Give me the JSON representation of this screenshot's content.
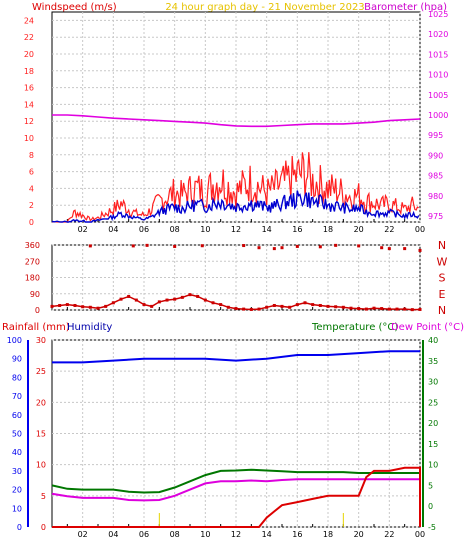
{
  "header": {
    "left_title": "Windspeed (m/s)",
    "center_title": "24 hour graph day - 21 November 2023",
    "right_title": "Barometer (hpa)"
  },
  "bottom_header": {
    "rainfall_label": "Rainfall (mm)",
    "humidity_label": "Humidity",
    "temperature_label": "Temperature (°C)",
    "dewpoint_label": "Dew Point (°C)"
  },
  "colors": {
    "wind_gust": "#ff2020",
    "wind_avg": "#0000d0",
    "barometer": "#e000e0",
    "direction": "#cc0000",
    "humidity": "#0000ee",
    "temperature": "#007700",
    "dewpoint": "#dd00dd",
    "rainfall": "#dd0000",
    "grid": "#c8c8c8"
  },
  "chart_data": [
    {
      "type": "line",
      "name": "wind-and-pressure",
      "x_ticks": [
        "02",
        "04",
        "06",
        "08",
        "10",
        "12",
        "14",
        "16",
        "18",
        "20",
        "22",
        "00"
      ],
      "xlim": [
        0,
        24
      ],
      "y_left_ticks": [
        0,
        2,
        4,
        6,
        8,
        10,
        12,
        14,
        16,
        18,
        20,
        22,
        24
      ],
      "ylim_left": [
        0,
        25
      ],
      "y_right_ticks": [
        975,
        980,
        985,
        990,
        995,
        1000,
        1005,
        1010,
        1015,
        1020,
        1025
      ],
      "ylim_right": [
        973.5,
        1025.5
      ],
      "grid": true,
      "series": [
        {
          "key": "gust",
          "axis": "left",
          "x": [
            0,
            1,
            1.5,
            2,
            2.5,
            3,
            3.5,
            4,
            4.5,
            5,
            5.5,
            6,
            6.5,
            7,
            7.5,
            8,
            8.5,
            9,
            9.5,
            10,
            10.5,
            11,
            11.5,
            12,
            12.5,
            13,
            13.5,
            14,
            14.5,
            15,
            15.5,
            16,
            16.5,
            17,
            17.5,
            18,
            18.5,
            19,
            19.5,
            20,
            20.5,
            21,
            21.5,
            22,
            22.5,
            23,
            23.5,
            24
          ],
          "values": [
            0,
            0,
            1.2,
            0.8,
            0.3,
            0.5,
            1,
            1.5,
            2.2,
            1.5,
            1,
            0.8,
            1.5,
            2.5,
            3,
            3.5,
            3.2,
            3.8,
            4,
            3.5,
            4.5,
            5,
            4.2,
            3.5,
            4.3,
            4.8,
            4.2,
            3.5,
            4,
            4.5,
            5,
            5.5,
            6,
            4.8,
            4.5,
            4,
            3.8,
            3.5,
            3,
            3.2,
            2.5,
            2.3,
            2,
            2.2,
            1.8,
            1.5,
            2,
            1.5
          ]
        },
        {
          "key": "average",
          "axis": "left",
          "x": [
            0,
            1,
            1.5,
            2,
            2.5,
            3,
            3.5,
            4,
            4.5,
            5,
            5.5,
            6,
            6.5,
            7,
            7.5,
            8,
            8.5,
            9,
            9.5,
            10,
            10.5,
            11,
            11.5,
            12,
            12.5,
            13,
            13.5,
            14,
            14.5,
            15,
            15.5,
            16,
            16.5,
            17,
            17.5,
            18,
            18.5,
            19,
            19.5,
            20,
            20.5,
            21,
            21.5,
            22,
            22.5,
            23,
            23.5,
            24
          ],
          "values": [
            0,
            0,
            0.2,
            0.1,
            0,
            0.2,
            0.4,
            0.6,
            1,
            0.7,
            0.5,
            0.3,
            0.6,
            1.2,
            1.5,
            1.8,
            1.6,
            1.9,
            2.1,
            1.8,
            2.2,
            2.4,
            2.1,
            1.8,
            2,
            2.2,
            2,
            1.7,
            1.9,
            2.2,
            2.5,
            2.7,
            3,
            2.4,
            2.3,
            2,
            1.9,
            1.7,
            1.5,
            1.6,
            1.2,
            1.1,
            1,
            1.1,
            0.9,
            0.7,
            0.9,
            0.6
          ]
        },
        {
          "key": "barometer",
          "axis": "right",
          "x": [
            0,
            1,
            2,
            3,
            4,
            5,
            6,
            7,
            8,
            9,
            10,
            11,
            12,
            13,
            14,
            15,
            16,
            17,
            18,
            19,
            20,
            21,
            22,
            23,
            24
          ],
          "values": [
            1000,
            1000,
            999.8,
            999.5,
            999.2,
            999,
            998.8,
            998.6,
            998.4,
            998.2,
            998,
            997.6,
            997.3,
            997.2,
            997.2,
            997.4,
            997.6,
            997.8,
            997.8,
            997.8,
            998,
            998.2,
            998.6,
            998.8,
            999
          ]
        }
      ]
    },
    {
      "type": "scatter",
      "name": "wind-direction",
      "x_ticks": [
        "02",
        "04",
        "06",
        "08",
        "10",
        "12",
        "14",
        "16",
        "18",
        "20",
        "22",
        "00"
      ],
      "xlim": [
        0,
        24
      ],
      "y_left_ticks": [
        0,
        90,
        180,
        270,
        360
      ],
      "ylim": [
        0,
        360
      ],
      "y_right_labels": [
        "N",
        "W",
        "S",
        "E",
        "N"
      ],
      "points": [
        [
          0,
          20
        ],
        [
          0.5,
          25
        ],
        [
          1,
          30
        ],
        [
          1.5,
          25
        ],
        [
          2,
          18
        ],
        [
          2.5,
          15
        ],
        [
          3,
          10
        ],
        [
          3.5,
          20
        ],
        [
          4,
          40
        ],
        [
          4.5,
          60
        ],
        [
          5,
          75
        ],
        [
          5.5,
          55
        ],
        [
          6,
          30
        ],
        [
          6.5,
          20
        ],
        [
          7,
          45
        ],
        [
          7.5,
          55
        ],
        [
          8,
          60
        ],
        [
          8.5,
          70
        ],
        [
          9,
          85
        ],
        [
          9.5,
          75
        ],
        [
          10,
          55
        ],
        [
          10.5,
          40
        ],
        [
          11,
          30
        ],
        [
          11.5,
          15
        ],
        [
          12,
          8
        ],
        [
          12.5,
          5
        ],
        [
          13,
          3
        ],
        [
          13.5,
          5
        ],
        [
          14,
          15
        ],
        [
          14.5,
          25
        ],
        [
          15,
          20
        ],
        [
          15.5,
          15
        ],
        [
          16,
          30
        ],
        [
          16.5,
          40
        ],
        [
          17,
          30
        ],
        [
          17.5,
          25
        ],
        [
          18,
          20
        ],
        [
          18.5,
          18
        ],
        [
          19,
          15
        ],
        [
          19.5,
          10
        ],
        [
          20,
          8
        ],
        [
          20.5,
          5
        ],
        [
          21,
          10
        ],
        [
          21.5,
          8
        ],
        [
          22,
          5
        ],
        [
          22.5,
          5
        ],
        [
          23,
          5
        ],
        [
          23.5,
          2
        ],
        [
          24,
          3
        ],
        [
          2.5,
          355
        ],
        [
          5.3,
          355
        ],
        [
          6.2,
          358
        ],
        [
          8,
          352
        ],
        [
          9.8,
          356
        ],
        [
          12.5,
          357
        ],
        [
          13.5,
          345
        ],
        [
          14.5,
          340
        ],
        [
          15,
          345
        ],
        [
          16,
          352
        ],
        [
          17.5,
          350
        ],
        [
          18.5,
          358
        ],
        [
          20,
          355
        ],
        [
          21.5,
          345
        ],
        [
          22,
          340
        ],
        [
          23,
          340
        ],
        [
          24,
          330
        ]
      ]
    },
    {
      "type": "line",
      "name": "rain-humidity-temperature",
      "x_ticks": [
        "02",
        "04",
        "06",
        "08",
        "10",
        "12",
        "14",
        "16",
        "18",
        "20",
        "22",
        "00"
      ],
      "xlim": [
        0,
        24
      ],
      "y_far_left_ticks": [
        0,
        10,
        20,
        30,
        40,
        50,
        60,
        70,
        80,
        90,
        100
      ],
      "y_left_ticks": [
        0,
        5,
        10,
        15,
        20,
        25,
        30
      ],
      "y_right_ticks": [
        -5,
        0,
        5,
        10,
        15,
        20,
        25,
        30,
        35,
        40
      ],
      "ylim_humidity": [
        0,
        100
      ],
      "ylim_rain": [
        0,
        30
      ],
      "ylim_temp": [
        -5,
        40
      ],
      "grid": true,
      "series": [
        {
          "key": "humidity",
          "axis": "humidity",
          "x": [
            0,
            2,
            4,
            6,
            8,
            10,
            12,
            14,
            16,
            18,
            20,
            22,
            24
          ],
          "values": [
            88,
            88,
            89,
            90,
            90,
            90,
            89,
            90,
            92,
            92,
            93,
            94,
            94
          ]
        },
        {
          "key": "temperature",
          "axis": "temp",
          "x": [
            0,
            1,
            2,
            3,
            4,
            5,
            6,
            7,
            8,
            9,
            10,
            11,
            12,
            13,
            14,
            15,
            16,
            17,
            18,
            19,
            20,
            21,
            22,
            23,
            24
          ],
          "values": [
            5,
            4.2,
            4,
            4,
            4,
            3.5,
            3.3,
            3.4,
            4.5,
            6,
            7.5,
            8.5,
            8.6,
            8.8,
            8.6,
            8.4,
            8.2,
            8.2,
            8.2,
            8.2,
            8,
            8,
            8,
            8,
            8
          ]
        },
        {
          "key": "dewpoint",
          "axis": "temp",
          "x": [
            0,
            1,
            2,
            3,
            4,
            5,
            6,
            7,
            8,
            9,
            10,
            11,
            12,
            13,
            14,
            15,
            16,
            17,
            18,
            19,
            20,
            21,
            22,
            23,
            24
          ],
          "values": [
            3,
            2.4,
            2,
            2,
            2,
            1.5,
            1.4,
            1.5,
            2.5,
            4,
            5.5,
            6,
            6,
            6.2,
            6,
            6.3,
            6.5,
            6.5,
            6.5,
            6.5,
            6.5,
            6.5,
            6.5,
            6.5,
            6.5
          ]
        },
        {
          "key": "rainfall",
          "axis": "rain",
          "x": [
            0,
            13.5,
            14,
            14.5,
            15,
            16,
            17,
            18,
            19,
            19.5,
            20,
            20.5,
            21,
            22,
            23,
            24,
            24
          ],
          "values": [
            0,
            0,
            1.5,
            2.5,
            3.5,
            4,
            4.5,
            5,
            5,
            5,
            5,
            8,
            9,
            9,
            9.5,
            9.5,
            0
          ]
        }
      ]
    }
  ]
}
